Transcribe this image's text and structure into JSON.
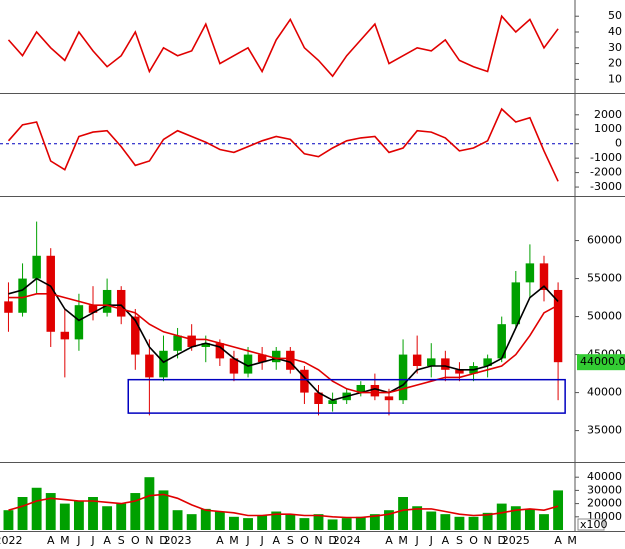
{
  "chart_data": [
    {
      "type": "line",
      "ylim": [
        2,
        59
      ],
      "yticks": [
        10,
        20,
        30,
        40,
        50
      ],
      "series": [
        {
          "color": "#e00000",
          "values": [
            35,
            25,
            40,
            30,
            22,
            40,
            28,
            18,
            25,
            40,
            15,
            30,
            25,
            28,
            45,
            20,
            25,
            30,
            15,
            35,
            48,
            30,
            22,
            12,
            25,
            35,
            45,
            20,
            25,
            30,
            28,
            35,
            22,
            18,
            15,
            50,
            40,
            48,
            30,
            42,
            null
          ]
        }
      ]
    },
    {
      "type": "line",
      "ylim": [
        -3550,
        3300
      ],
      "yticks": [
        2000,
        1000,
        0,
        -1000,
        -2000,
        -3000
      ],
      "zero_line": true,
      "series": [
        {
          "color": "#e00000",
          "values": [
            200,
            1300,
            1500,
            -1200,
            -1800,
            500,
            800,
            900,
            -200,
            -1500,
            -1200,
            300,
            900,
            500,
            100,
            -400,
            -600,
            -200,
            200,
            500,
            300,
            -700,
            -900,
            -300,
            200,
            400,
            500,
            -600,
            -300,
            900,
            800,
            400,
            -500,
            -300,
            200,
            2400,
            1500,
            1800,
            -500,
            -2600,
            null
          ]
        }
      ]
    },
    {
      "type": "candlestick",
      "ylim": [
        31000,
        65600
      ],
      "yticks": [
        35000,
        40000,
        45000,
        50000,
        55000,
        60000
      ],
      "up_color": "#00a000",
      "down_color": "#e00000",
      "open": [
        52000,
        50500,
        55000,
        58000,
        48000,
        47000,
        51500,
        50500,
        53500,
        50000,
        45000,
        42000,
        45500,
        47500,
        46000,
        46500,
        44500,
        42500,
        45000,
        44000,
        45500,
        43000,
        40000,
        38500,
        39000,
        40000,
        41000,
        39500,
        39000,
        45000,
        43500,
        44500,
        43000,
        42500,
        43500,
        44500,
        49000,
        54500,
        57000,
        53500,
        null
      ],
      "high": [
        54500,
        57000,
        62500,
        59000,
        51000,
        53000,
        54000,
        55000,
        54000,
        51000,
        47000,
        47500,
        48500,
        49000,
        47500,
        47000,
        45500,
        46000,
        46000,
        46000,
        46000,
        43500,
        41000,
        40000,
        40500,
        41500,
        42500,
        40500,
        47000,
        47500,
        46500,
        45500,
        44000,
        44000,
        45000,
        50000,
        56000,
        59500,
        58000,
        54500,
        null
      ],
      "low": [
        48000,
        50000,
        53000,
        46000,
        42000,
        45500,
        49500,
        50000,
        49000,
        43000,
        37000,
        41500,
        44500,
        45500,
        44000,
        43500,
        41500,
        42000,
        43000,
        43000,
        42500,
        38500,
        37000,
        37500,
        38500,
        39500,
        39000,
        37000,
        38500,
        42500,
        42000,
        41500,
        41500,
        41500,
        42000,
        44000,
        48500,
        52500,
        52000,
        39000,
        null
      ],
      "close": [
        50500,
        55000,
        58000,
        48000,
        47000,
        51500,
        50500,
        53500,
        50000,
        45000,
        42000,
        45500,
        47500,
        46000,
        46500,
        44500,
        42500,
        45000,
        44000,
        45500,
        43000,
        40000,
        38500,
        39000,
        40000,
        41000,
        39500,
        39000,
        45000,
        43500,
        44500,
        43000,
        42500,
        43500,
        44500,
        49000,
        54500,
        57000,
        53500,
        44000,
        null
      ],
      "series": [
        {
          "color": "#000000",
          "values": [
            53000,
            53500,
            55000,
            54000,
            51000,
            49500,
            50500,
            51500,
            51500,
            49500,
            46000,
            44000,
            45000,
            46000,
            46500,
            46000,
            44500,
            43500,
            44000,
            44500,
            44000,
            42000,
            40000,
            39000,
            39500,
            40000,
            40500,
            40000,
            41000,
            43000,
            43500,
            43500,
            43000,
            43000,
            43500,
            44500,
            48500,
            52500,
            54000,
            52000,
            null
          ]
        },
        {
          "color": "#e00000",
          "values": [
            52500,
            52500,
            53000,
            53000,
            52500,
            52000,
            51500,
            51500,
            51000,
            50500,
            49000,
            48000,
            47500,
            47000,
            47000,
            46500,
            46000,
            45500,
            45000,
            44500,
            44500,
            44000,
            43000,
            41500,
            40500,
            40000,
            40000,
            40000,
            40500,
            41000,
            41500,
            42000,
            42000,
            42500,
            43000,
            43500,
            45000,
            47500,
            50500,
            51500,
            null
          ]
        }
      ],
      "zone": {
        "xlim": [
          8.5,
          39.5
        ],
        "ylim": [
          37300,
          41700
        ],
        "color": "#0000c0"
      },
      "last_price": {
        "value": 44000,
        "label": "44000.00",
        "color": "#33cc33"
      }
    },
    {
      "type": "bar",
      "ylim": [
        0,
        50000
      ],
      "yticks": [
        10000,
        20000,
        30000,
        40000
      ],
      "color": "#00a000",
      "unit": "x100",
      "xlim": [
        -0.6,
        40.2
      ],
      "categories": [
        "2022",
        null,
        null,
        "A",
        "M",
        "J",
        "J",
        "A",
        "S",
        "O",
        "N",
        "D",
        "2023",
        null,
        null,
        "A",
        "M",
        "J",
        "J",
        "A",
        "S",
        "O",
        "N",
        "D",
        "2024",
        null,
        null,
        "A",
        "M",
        "J",
        "J",
        "A",
        "S",
        "O",
        "N",
        "D",
        "2025",
        null,
        null,
        "A",
        "M"
      ],
      "values": [
        15000,
        25000,
        32000,
        28000,
        20000,
        22000,
        25000,
        18000,
        20000,
        28000,
        40000,
        30000,
        15000,
        12000,
        16000,
        14000,
        10000,
        9000,
        11000,
        14000,
        12000,
        9000,
        12000,
        8000,
        9000,
        10000,
        12000,
        15000,
        25000,
        18000,
        14000,
        12000,
        10000,
        10000,
        13000,
        20000,
        18000,
        16000,
        12000,
        30000,
        null
      ],
      "series": [
        {
          "color": "#e00000",
          "values": [
            15000,
            18000,
            22000,
            24000,
            23000,
            22000,
            22000,
            21000,
            20000,
            22000,
            26000,
            27000,
            24000,
            19000,
            15000,
            14000,
            13000,
            11000,
            11000,
            12000,
            12000,
            11000,
            11000,
            10000,
            9500,
            9500,
            10500,
            12000,
            15000,
            16000,
            16000,
            14000,
            12000,
            11000,
            11500,
            13000,
            15000,
            16000,
            15000,
            18000,
            null
          ]
        }
      ]
    }
  ]
}
